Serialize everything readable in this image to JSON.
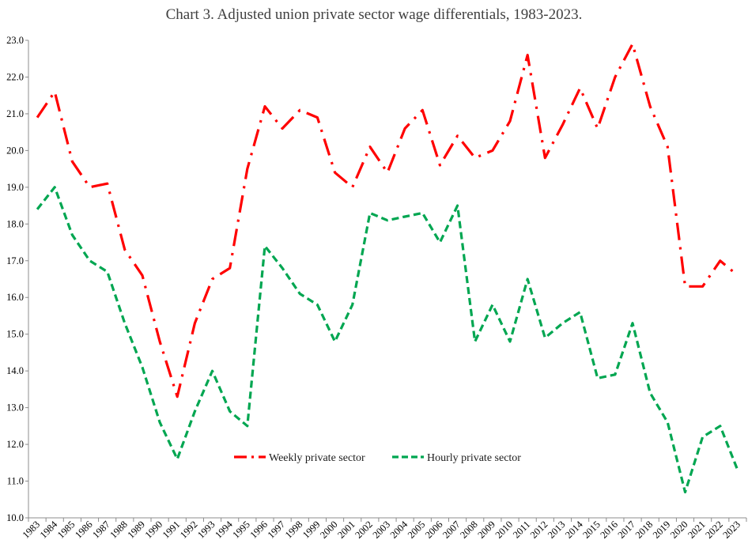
{
  "title": "Chart 3.  Adjusted union private sector wage differentials, 1983-2023.",
  "chart_data": {
    "type": "line",
    "title": "Chart 3.  Adjusted union private sector wage differentials, 1983-2023.",
    "xlabel": "",
    "ylabel": "",
    "ylim": [
      10.0,
      23.0
    ],
    "y_ticks": [
      "10.0",
      "11.0",
      "12.0",
      "13.0",
      "14.0",
      "15.0",
      "16.0",
      "17.0",
      "18.0",
      "19.0",
      "20.0",
      "21.0",
      "22.0",
      "23.0"
    ],
    "grid": false,
    "legend_position": "center",
    "x": [
      "1983",
      "1984",
      "1985",
      "1986",
      "1987",
      "1988",
      "1989",
      "1990",
      "1991",
      "1992",
      "1993",
      "1994",
      "1995",
      "1996",
      "1997",
      "1998",
      "1999",
      "2000",
      "2001",
      "2002",
      "2003",
      "2004",
      "2005",
      "2006",
      "2007",
      "2008",
      "2009",
      "2010",
      "2011",
      "2012",
      "2013",
      "2014",
      "2015",
      "2016",
      "2017",
      "2018",
      "2019",
      "2020",
      "2021",
      "2022",
      "2023"
    ],
    "series": [
      {
        "name": "Weekly private sector",
        "color": "#ff0000",
        "style": "dash-dot",
        "values": [
          20.9,
          21.6,
          19.7,
          19.0,
          19.1,
          17.3,
          16.6,
          14.8,
          13.3,
          15.3,
          16.5,
          16.8,
          19.5,
          21.2,
          20.6,
          21.1,
          20.9,
          19.4,
          19.0,
          20.1,
          19.4,
          20.6,
          21.1,
          19.6,
          20.4,
          19.8,
          20.0,
          20.8,
          22.6,
          19.8,
          20.7,
          21.7,
          20.6,
          22.0,
          22.9,
          21.2,
          20.1,
          16.3,
          16.3,
          17.0,
          16.6
        ]
      },
      {
        "name": "Hourly private sector",
        "color": "#00a651",
        "style": "dashed",
        "values": [
          18.4,
          19.0,
          17.7,
          17.0,
          16.7,
          15.3,
          14.1,
          12.6,
          11.6,
          12.9,
          14.0,
          12.9,
          12.5,
          17.4,
          16.8,
          16.1,
          15.8,
          14.8,
          15.8,
          18.3,
          18.1,
          18.2,
          18.3,
          17.5,
          18.5,
          14.8,
          15.8,
          14.8,
          16.5,
          14.9,
          15.3,
          15.6,
          13.8,
          13.9,
          15.3,
          13.4,
          12.6,
          10.7,
          12.2,
          12.5,
          11.3
        ]
      }
    ]
  }
}
